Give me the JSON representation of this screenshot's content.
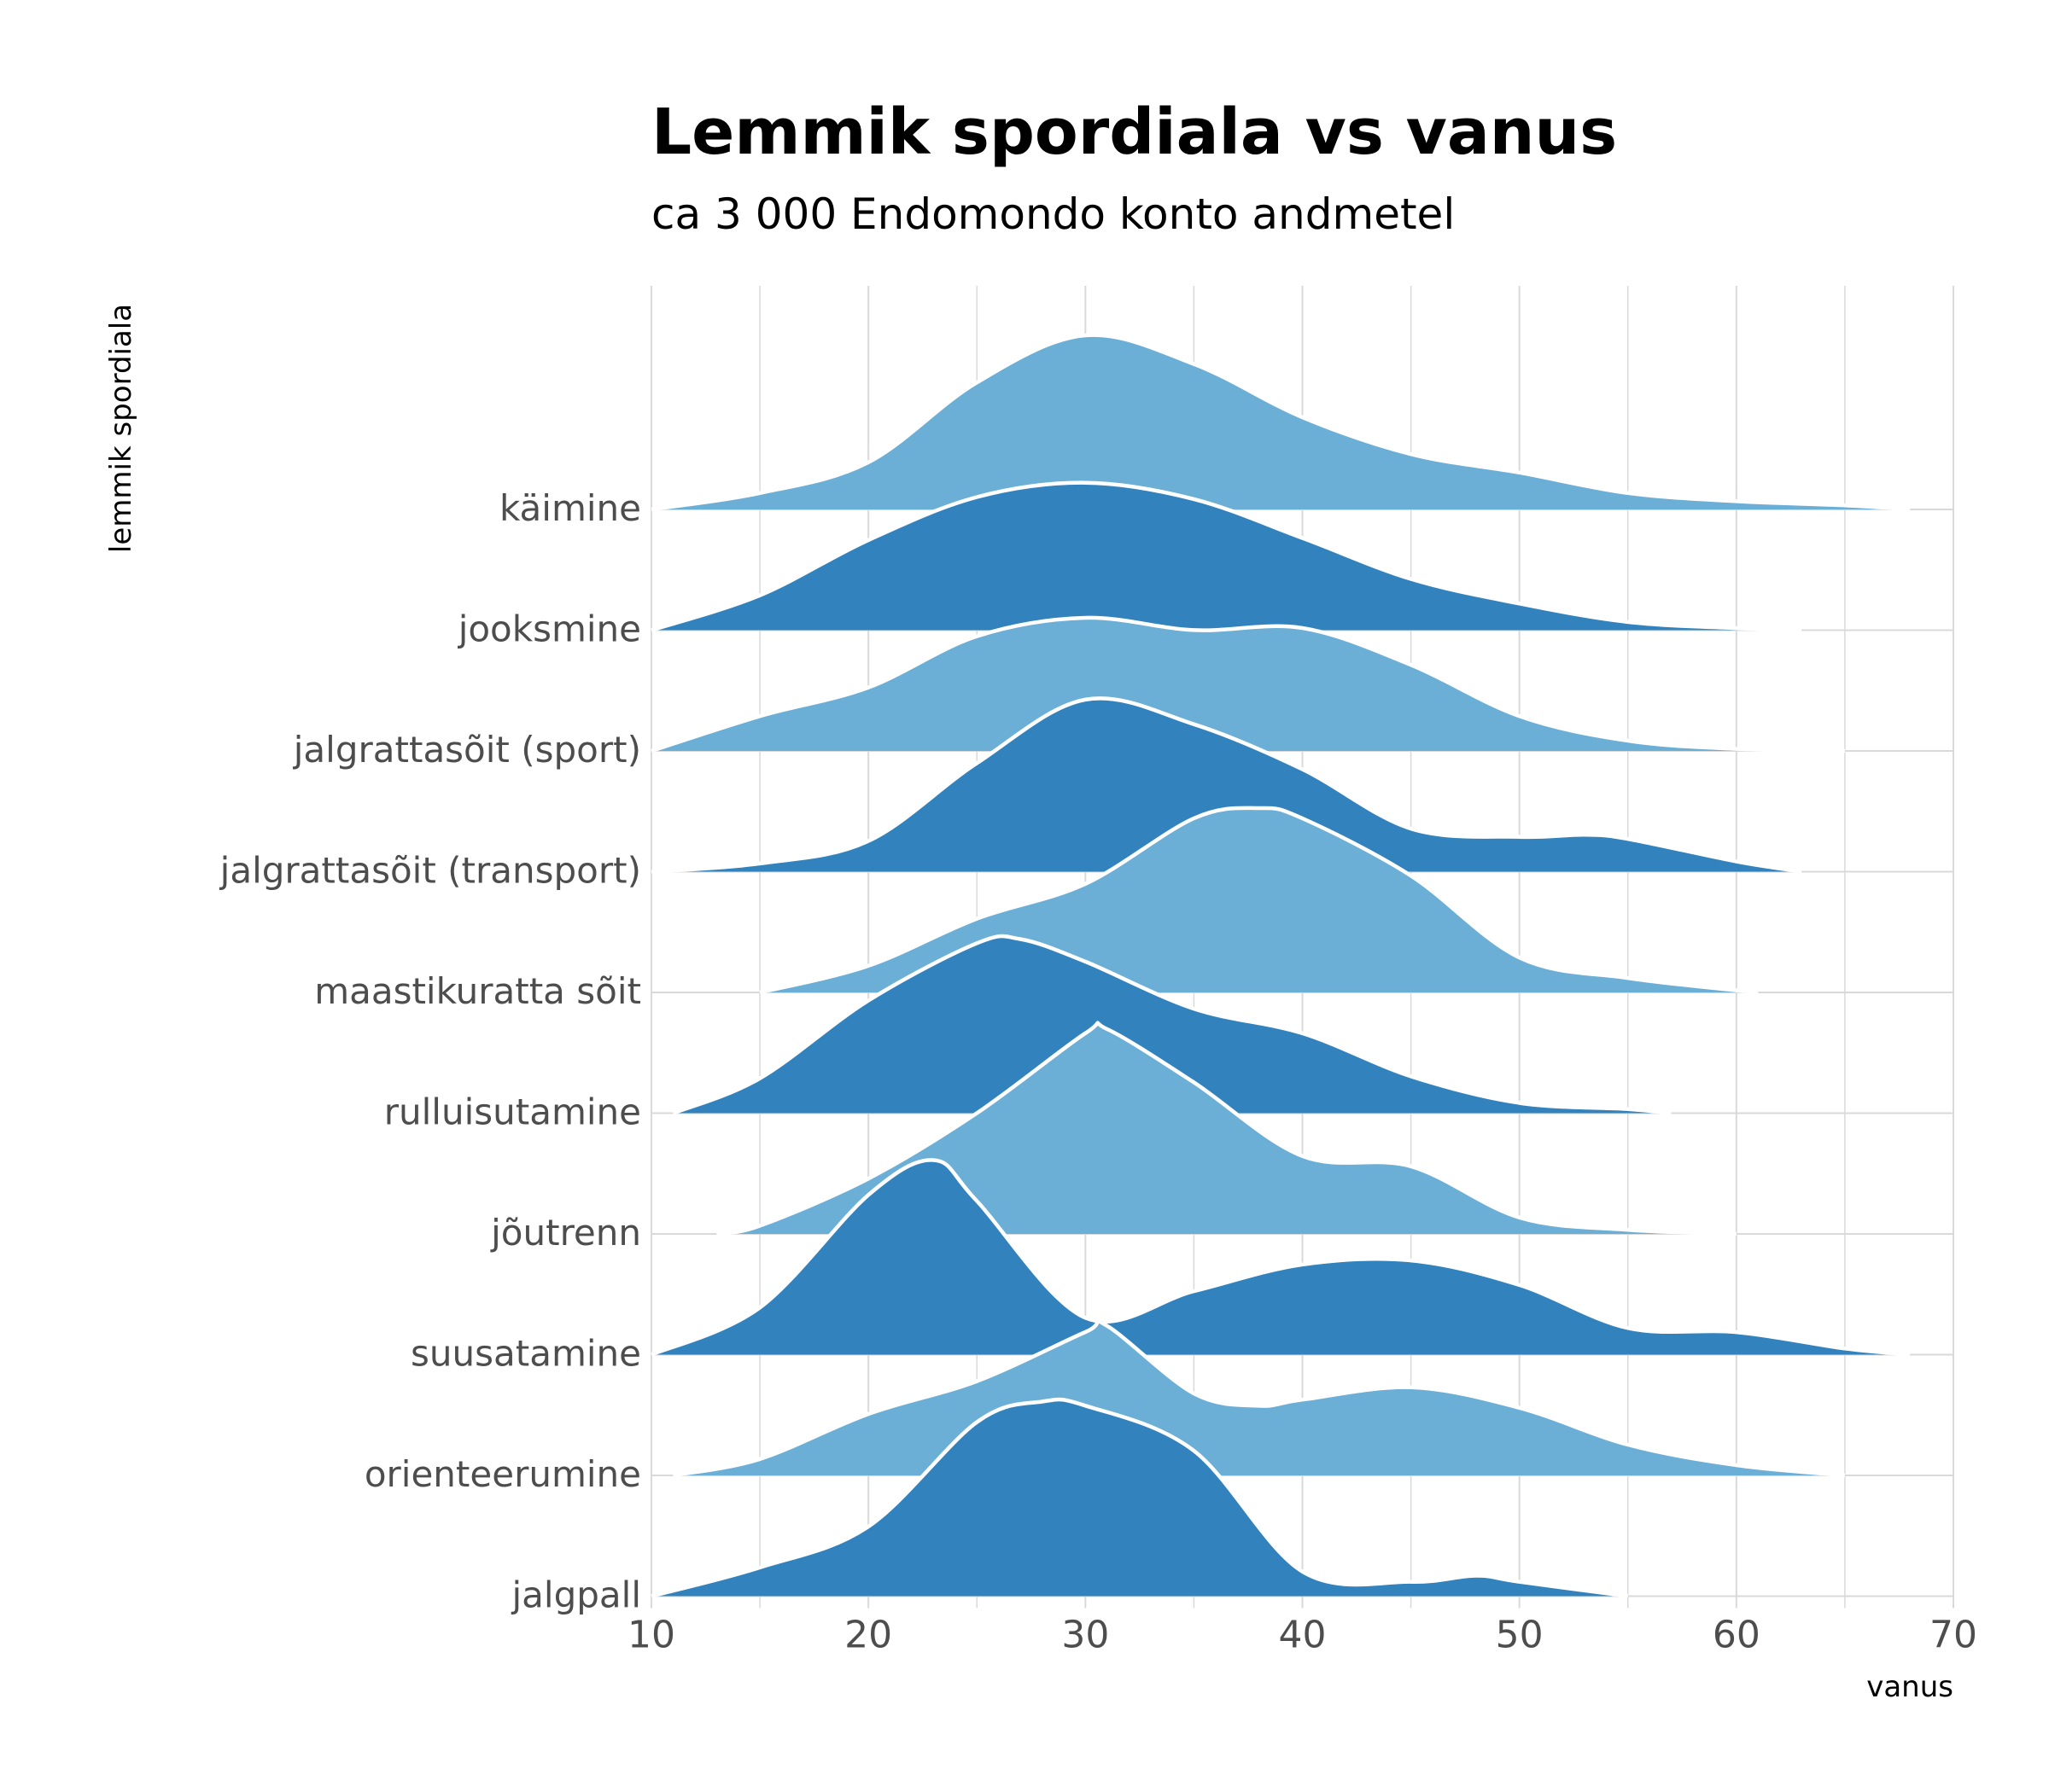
{
  "chart_data": {
    "type": "ridgeline",
    "title": "Lemmik spordiala vs vanus",
    "subtitle": "ca 3 000 Endomondo konto andmetel",
    "xlabel": "vanus",
    "ylabel": "lemmik spordiala",
    "xlim": [
      10,
      70
    ],
    "x_ticks": [
      10,
      20,
      30,
      40,
      50,
      60,
      70
    ],
    "grid": true,
    "colors": {
      "light": "#6baed6",
      "dark": "#3182bd",
      "outline": "#ffffff",
      "grid": "#d9d9d9"
    },
    "categories": [
      "käimine",
      "jooksmine",
      "jalgrattasõit (sport)",
      "jalgrattasõit (transport)",
      "maastikuratta sõit",
      "rulluisutamine",
      "jõutrenn",
      "suusatamine",
      "orienteerumine",
      "jalgpall"
    ],
    "series": [
      {
        "name": "käimine",
        "color": "light",
        "x": [
          10,
          15,
          20,
          25,
          30,
          35,
          40,
          45,
          50,
          55,
          60,
          65,
          68
        ],
        "y": [
          0.0,
          0.08,
          0.23,
          0.62,
          0.85,
          0.71,
          0.45,
          0.27,
          0.18,
          0.08,
          0.04,
          0.02,
          0.0
        ]
      },
      {
        "name": "jooksmine",
        "color": "dark",
        "x": [
          10,
          15,
          20,
          25,
          30,
          35,
          40,
          45,
          50,
          55,
          60,
          63
        ],
        "y": [
          0.0,
          0.17,
          0.44,
          0.65,
          0.72,
          0.64,
          0.45,
          0.25,
          0.13,
          0.04,
          0.01,
          0.0
        ]
      },
      {
        "name": "jalgrattasõit (sport)",
        "color": "light",
        "x": [
          10,
          15,
          20,
          25,
          30,
          35,
          40,
          45,
          50,
          55,
          60,
          65
        ],
        "y": [
          0.0,
          0.17,
          0.31,
          0.56,
          0.65,
          0.59,
          0.6,
          0.42,
          0.17,
          0.05,
          0.01,
          0.0
        ]
      },
      {
        "name": "jalgrattasõit (transport)",
        "color": "dark",
        "x": [
          10,
          15,
          20,
          25,
          30,
          35,
          40,
          45,
          50,
          53,
          55,
          60,
          63
        ],
        "y": [
          0.0,
          0.04,
          0.15,
          0.53,
          0.84,
          0.72,
          0.5,
          0.21,
          0.17,
          0.18,
          0.16,
          0.05,
          0.0
        ]
      },
      {
        "name": "maastikuratta sõit",
        "color": "light",
        "x": [
          15,
          20,
          25,
          30,
          35,
          38,
          40,
          45,
          50,
          55,
          60,
          61
        ],
        "y": [
          0.0,
          0.13,
          0.36,
          0.53,
          0.85,
          0.9,
          0.85,
          0.57,
          0.17,
          0.07,
          0.01,
          0.0
        ]
      },
      {
        "name": "rulluisutamine",
        "color": "dark",
        "x": [
          11,
          15,
          20,
          25,
          27,
          30,
          35,
          40,
          45,
          50,
          55,
          57
        ],
        "y": [
          0.0,
          0.17,
          0.55,
          0.83,
          0.85,
          0.74,
          0.51,
          0.39,
          0.18,
          0.05,
          0.02,
          0.0
        ]
      },
      {
        "name": "jõutrenn",
        "color": "light",
        "x": [
          13,
          15,
          20,
          25,
          30,
          31,
          35,
          40,
          45,
          50,
          55,
          60
        ],
        "y": [
          0.0,
          0.04,
          0.27,
          0.59,
          0.98,
          1.0,
          0.74,
          0.38,
          0.33,
          0.08,
          0.02,
          0.0
        ]
      },
      {
        "name": "suusatamine",
        "color": "dark",
        "x": [
          10,
          15,
          20,
          23,
          25,
          30,
          35,
          40,
          45,
          50,
          55,
          60,
          65,
          68
        ],
        "y": [
          0.0,
          0.23,
          0.78,
          0.95,
          0.75,
          0.18,
          0.31,
          0.44,
          0.46,
          0.34,
          0.13,
          0.11,
          0.03,
          0.0
        ]
      },
      {
        "name": "orienteerumine",
        "color": "light",
        "x": [
          11,
          15,
          20,
          25,
          30,
          31,
          35,
          38,
          40,
          45,
          50,
          55,
          60,
          65
        ],
        "y": [
          0.0,
          0.08,
          0.3,
          0.46,
          0.7,
          0.73,
          0.4,
          0.34,
          0.37,
          0.43,
          0.33,
          0.15,
          0.05,
          0.0
        ]
      },
      {
        "name": "jalgpall",
        "color": "dark",
        "x": [
          10,
          15,
          20,
          25,
          28,
          30,
          35,
          40,
          45,
          48,
          50,
          55
        ],
        "y": [
          0.0,
          0.14,
          0.34,
          0.85,
          0.95,
          0.93,
          0.71,
          0.12,
          0.07,
          0.1,
          0.07,
          0.0
        ]
      }
    ]
  }
}
